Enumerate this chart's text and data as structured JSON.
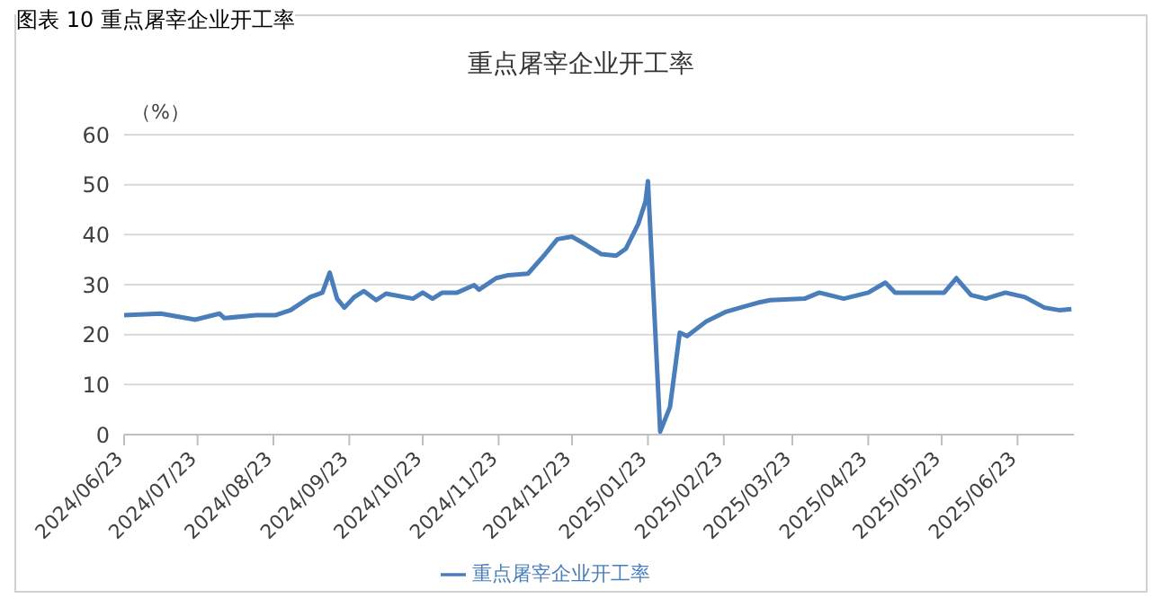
{
  "chart_data": {
    "type": "line",
    "title": "重点屠宰企业开工率",
    "ylabel": "（%）",
    "annotations": [
      "图表 10  重点屠宰企业开工率"
    ],
    "x": [
      "2024-06-23",
      "2024-07-08",
      "2024-07-22",
      "2024-08-01",
      "2024-08-03",
      "2024-08-16",
      "2024-08-24",
      "2024-08-30",
      "2024-09-07",
      "2024-09-12",
      "2024-09-15",
      "2024-09-18",
      "2024-09-21",
      "2024-09-25",
      "2024-09-29",
      "2024-10-04",
      "2024-10-08",
      "2024-10-19",
      "2024-10-23",
      "2024-10-27",
      "2024-10-31",
      "2024-11-06",
      "2024-11-13",
      "2024-11-15",
      "2024-11-22",
      "2024-11-27",
      "2024-12-05",
      "2024-12-12",
      "2024-12-17",
      "2024-12-23",
      "2024-12-29",
      "2025-01-04",
      "2025-01-10",
      "2025-01-14",
      "2025-01-19",
      "2025-01-22",
      "2025-01-23",
      "2025-01-28",
      "2025-02-01",
      "2025-02-05",
      "2025-02-08",
      "2025-02-16",
      "2025-02-24",
      "2025-03-04",
      "2025-03-09",
      "2025-03-14",
      "2025-03-28",
      "2025-04-03",
      "2025-04-13",
      "2025-04-23",
      "2025-04-30",
      "2025-05-04",
      "2025-05-15",
      "2025-05-24",
      "2025-05-29",
      "2025-06-04",
      "2025-06-10",
      "2025-06-18",
      "2025-06-26",
      "2025-07-04",
      "2025-07-10",
      "2025-07-15"
    ],
    "series": [
      {
        "name": "重点屠宰企业开工率",
        "color": "#4a7ebb",
        "values": [
          23.9,
          24.2,
          23.0,
          24.2,
          23.3,
          23.9,
          23.9,
          24.9,
          27.5,
          28.4,
          32.4,
          27.2,
          25.4,
          27.5,
          28.7,
          26.9,
          28.2,
          27.2,
          28.4,
          27.2,
          28.4,
          28.4,
          29.9,
          29.0,
          31.3,
          31.9,
          32.2,
          36.1,
          39.1,
          39.6,
          37.9,
          36.1,
          35.8,
          37.2,
          42.1,
          46.6,
          50.7,
          0.6,
          5.5,
          20.4,
          19.7,
          22.7,
          24.6,
          25.7,
          26.4,
          26.9,
          27.2,
          28.4,
          27.2,
          28.4,
          30.4,
          28.4,
          28.4,
          28.4,
          31.3,
          27.9,
          27.2,
          28.4,
          27.5,
          25.4,
          24.9,
          25.1
        ]
      }
    ],
    "xlim": [
      "2024-06-23",
      "2025-07-16"
    ],
    "xticks": [
      {
        "value": "2024-06-23",
        "label": "2024/06/23"
      },
      {
        "value": "2024-07-23",
        "label": "2024/07/23"
      },
      {
        "value": "2024-08-23",
        "label": "2024/08/23"
      },
      {
        "value": "2024-09-23",
        "label": "2024/09/23"
      },
      {
        "value": "2024-10-23",
        "label": "2024/10/23"
      },
      {
        "value": "2024-11-23",
        "label": "2024/11/23"
      },
      {
        "value": "2024-12-23",
        "label": "2024/12/23"
      },
      {
        "value": "2025-01-23",
        "label": "2025/01/23"
      },
      {
        "value": "2025-02-23",
        "label": "2025/02/23"
      },
      {
        "value": "2025-03-23",
        "label": "2025/03/23"
      },
      {
        "value": "2025-04-23",
        "label": "2025/04/23"
      },
      {
        "value": "2025-05-23",
        "label": "2025/05/23"
      },
      {
        "value": "2025-06-23",
        "label": "2025/06/23"
      }
    ],
    "ylim": [
      0,
      60
    ],
    "yticks": [
      0,
      10,
      20,
      30,
      40,
      50,
      60
    ],
    "grid": "y",
    "legend": "bottom",
    "marker": "none",
    "line_style": "solid"
  }
}
